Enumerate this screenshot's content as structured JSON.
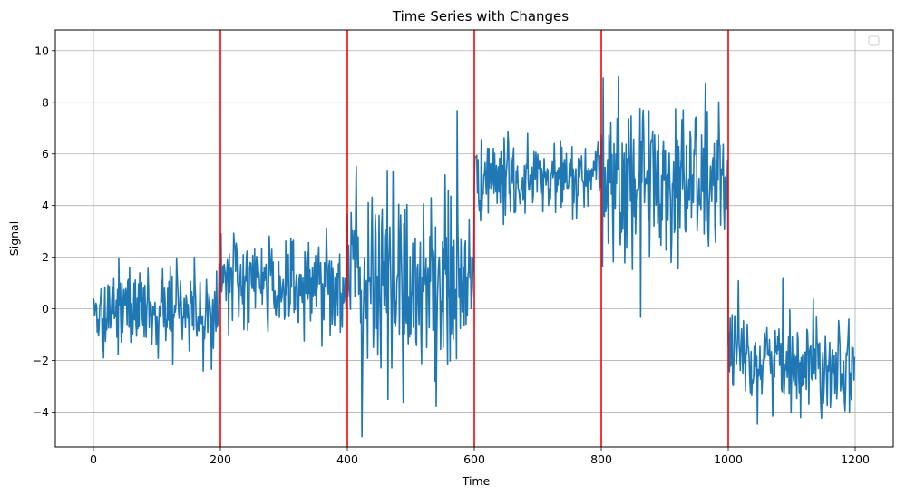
{
  "chart_data": {
    "type": "line",
    "title": "Time Series with Changes",
    "xlabel": "Time",
    "ylabel": "Signal",
    "xlim": [
      -60,
      1260
    ],
    "ylim": [
      -5.35,
      10.8
    ],
    "xticks": [
      0,
      200,
      400,
      600,
      800,
      1000,
      1200
    ],
    "yticks": [
      -4,
      -2,
      0,
      2,
      4,
      6,
      8,
      10
    ],
    "grid": true,
    "legend": "top-right, empty",
    "series": [
      {
        "color": "#1f77b4",
        "n_points": 1200,
        "segments": [
          {
            "x_start": 0,
            "x_end": 199,
            "mean": 0.0,
            "std": 0.85
          },
          {
            "x_start": 200,
            "x_end": 399,
            "mean": 1.0,
            "std": 1.0
          },
          {
            "x_start": 400,
            "x_end": 599,
            "mean": 1.0,
            "std": 1.9
          },
          {
            "x_start": 600,
            "x_end": 799,
            "mean": 5.0,
            "std": 0.75
          },
          {
            "x_start": 800,
            "x_end": 999,
            "mean": 5.0,
            "std": 1.6
          },
          {
            "x_start": 1000,
            "x_end": 1199,
            "mean": -2.0,
            "std": 0.95
          }
        ]
      }
    ],
    "change_points": {
      "x": [
        200,
        400,
        600,
        800,
        1000
      ],
      "color": "#ff0000"
    }
  }
}
